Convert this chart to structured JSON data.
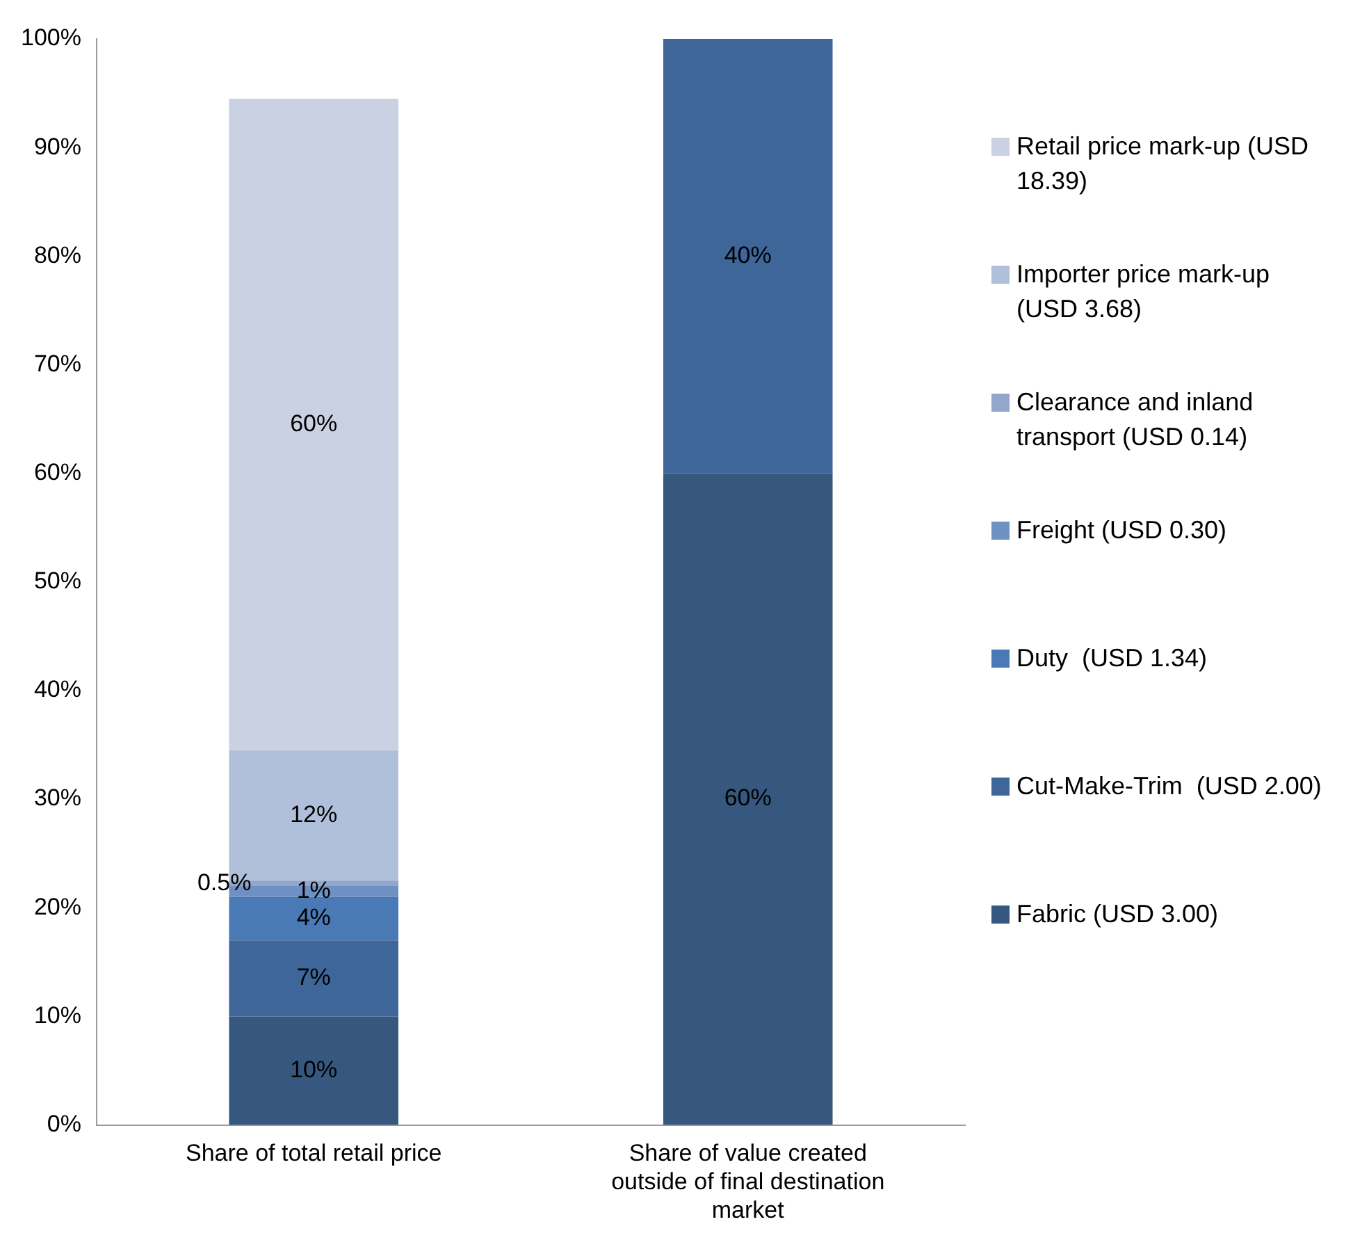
{
  "chart_data": {
    "type": "bar",
    "stacked": true,
    "categories": [
      "Share of total retail price",
      "Share of value created outside of final destination market"
    ],
    "ylim": [
      0,
      100
    ],
    "yticks": [
      {
        "value": 0,
        "label": "0%"
      },
      {
        "value": 10,
        "label": "10%"
      },
      {
        "value": 20,
        "label": "20%"
      },
      {
        "value": 30,
        "label": "30%"
      },
      {
        "value": 40,
        "label": "40%"
      },
      {
        "value": 50,
        "label": "50%"
      },
      {
        "value": 60,
        "label": "60%"
      },
      {
        "value": 70,
        "label": "70%"
      },
      {
        "value": 80,
        "label": "80%"
      },
      {
        "value": 90,
        "label": "90%"
      },
      {
        "value": 100,
        "label": "100%"
      }
    ],
    "grid": false,
    "legend": "right",
    "series": [
      {
        "name": "Fabric (USD 3.00)",
        "color": "#36587f",
        "values": [
          10,
          60
        ],
        "value_labels": [
          "10%",
          "60%"
        ]
      },
      {
        "name": "Cut-Make-Trim  (USD 2.00)",
        "color": "#3e6699",
        "values": [
          7,
          40
        ],
        "value_labels": [
          "7%",
          "40%"
        ]
      },
      {
        "name": "Duty  (USD 1.34)",
        "color": "#4a7ab6",
        "values": [
          4,
          null
        ],
        "value_labels": [
          "4%",
          null
        ]
      },
      {
        "name": "Freight (USD 0.30)",
        "color": "#6f90c2",
        "values": [
          1,
          null
        ],
        "value_labels": [
          "1%",
          null
        ]
      },
      {
        "name": "Clearance and inland transport (USD 0.14)",
        "color": "#93a7cd",
        "values": [
          0.5,
          null
        ],
        "value_labels": [
          "0.5%",
          null
        ]
      },
      {
        "name": "Importer price mark-up (USD 3.68)",
        "color": "#b0bfda",
        "values": [
          12,
          null
        ],
        "value_labels": [
          "12%",
          null
        ]
      },
      {
        "name": "Retail price mark-up (USD 18.39)",
        "color": "#c9d1e3",
        "values": [
          60,
          null
        ],
        "value_labels": [
          "60%",
          null
        ]
      }
    ]
  }
}
